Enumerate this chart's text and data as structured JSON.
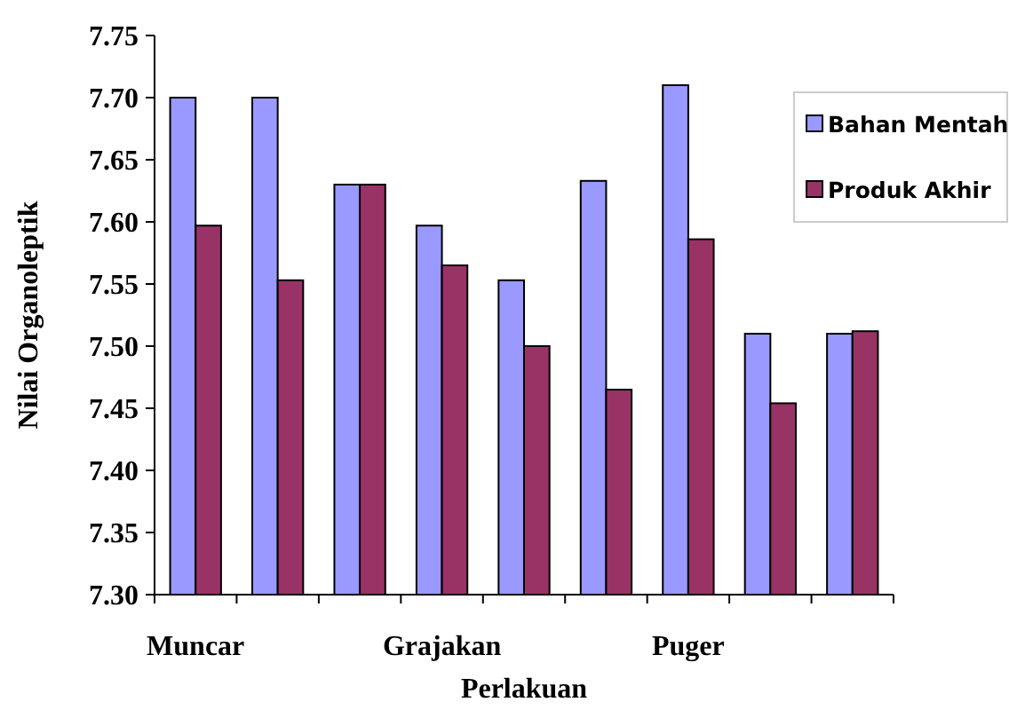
{
  "chart_data": {
    "type": "bar",
    "xlabel": "Perlakuan",
    "ylabel": "Nilai Organoleptik",
    "categories": [
      "Muncar",
      null,
      null,
      "Grajakan",
      null,
      null,
      "Puger",
      null,
      null
    ],
    "series": [
      {
        "name": "Bahan Mentah",
        "color": "#9999ff",
        "values": [
          7.7,
          7.7,
          7.63,
          7.597,
          7.553,
          7.633,
          7.71,
          7.51,
          7.51
        ]
      },
      {
        "name": "Produk Akhir",
        "color": "#993366",
        "values": [
          7.597,
          7.553,
          7.63,
          7.565,
          7.5,
          7.465,
          7.586,
          7.454,
          7.512
        ]
      }
    ],
    "ylim": [
      7.3,
      7.75
    ],
    "yticks": [
      {
        "value": 7.3,
        "label": "7.30"
      },
      {
        "value": 7.35,
        "label": "7.35"
      },
      {
        "value": 7.4,
        "label": "7.40"
      },
      {
        "value": 7.45,
        "label": "7.45"
      },
      {
        "value": 7.5,
        "label": "7.50"
      },
      {
        "value": 7.55,
        "label": "7.55"
      },
      {
        "value": 7.6,
        "label": "7.60"
      },
      {
        "value": 7.65,
        "label": "7.65"
      },
      {
        "value": 7.7,
        "label": "7.70"
      },
      {
        "value": 7.75,
        "label": "7.75"
      }
    ],
    "legend": "top right",
    "grid": false
  }
}
